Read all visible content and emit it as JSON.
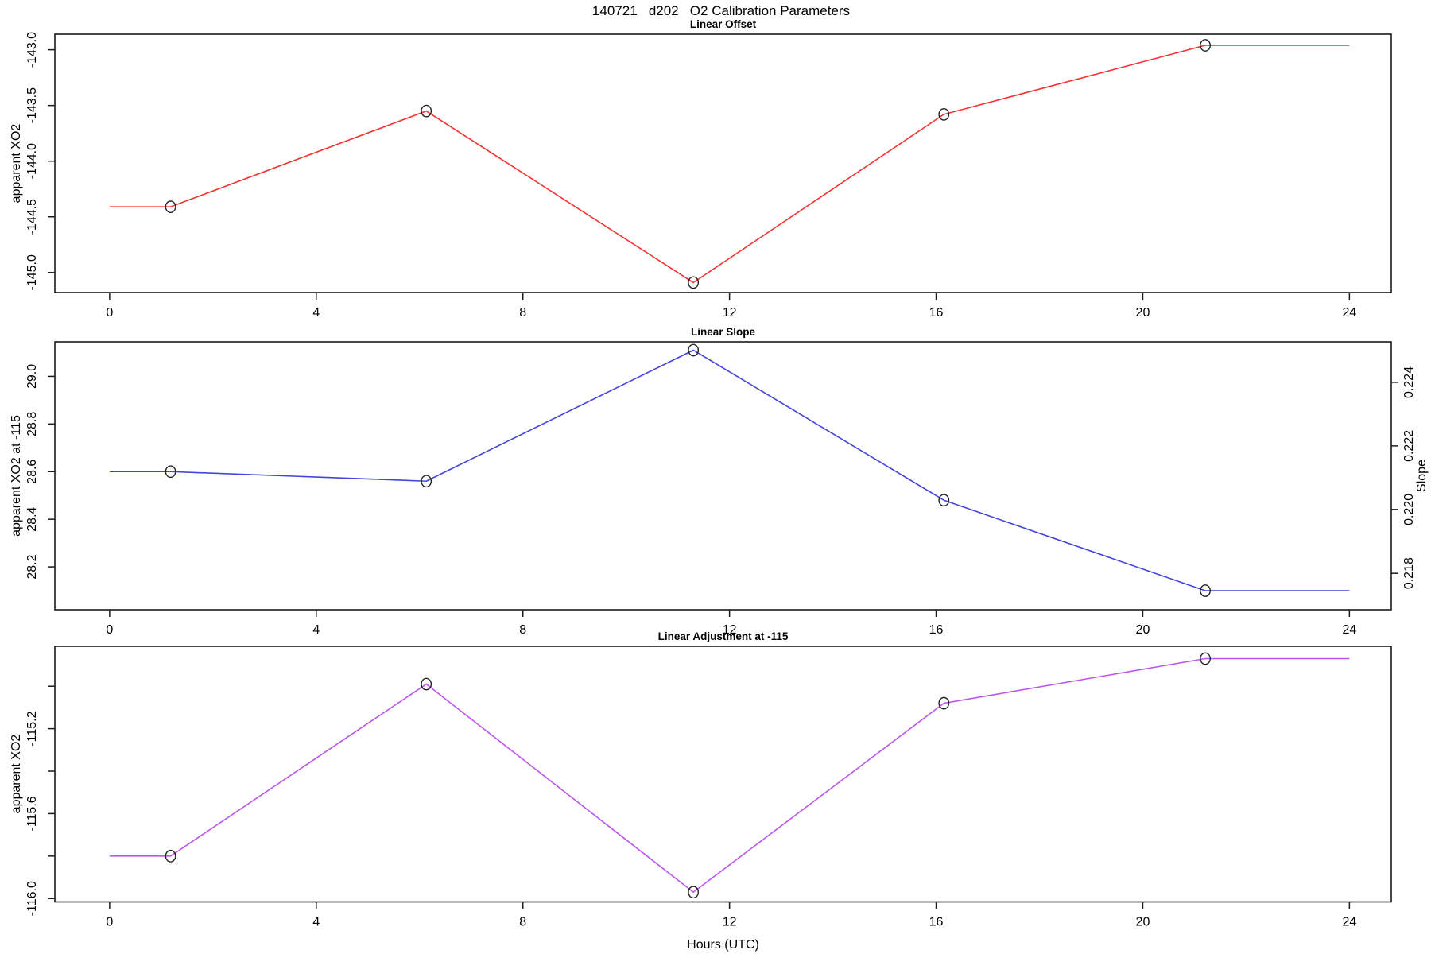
{
  "page_title": "140721   d202   O2 Calibration Parameters",
  "xlabel": "Hours (UTC)",
  "colors": {
    "offset_line": "#f53232",
    "slope_line": "#4343dd",
    "adjustment_line": "#bb55ee",
    "marker_stroke": "#222222",
    "axis": "#1a1a1a"
  },
  "chart_data": [
    {
      "type": "line",
      "title": "Linear Offset",
      "ylabel": "apparent XO2",
      "x": [
        1.18,
        6.13,
        11.3,
        16.15,
        21.21
      ],
      "values": [
        -144.41,
        -143.55,
        -145.09,
        -143.58,
        -142.96
      ],
      "extend_left_x": 0,
      "extend_right_x": 24,
      "xlim": [
        -1.06,
        24.81
      ],
      "ylim": [
        -145.18,
        -142.86
      ],
      "xticks": [
        {
          "v": 0,
          "label": "0"
        },
        {
          "v": 4,
          "label": "4"
        },
        {
          "v": 8,
          "label": "8"
        },
        {
          "v": 12,
          "label": "12"
        },
        {
          "v": 16,
          "label": "16"
        },
        {
          "v": 20,
          "label": "20"
        },
        {
          "v": 24,
          "label": "24"
        }
      ],
      "yticks": [
        {
          "v": -143.0,
          "label": "-143.0"
        },
        {
          "v": -143.5,
          "label": "-143.5"
        },
        {
          "v": -144.0,
          "label": "-144.0"
        },
        {
          "v": -144.5,
          "label": "-144.5"
        },
        {
          "v": -145.0,
          "label": "-145.0"
        }
      ],
      "color_key": "offset_line"
    },
    {
      "type": "line",
      "title": "Linear Slope",
      "ylabel": "apparent XO2 at -115",
      "x": [
        1.18,
        6.13,
        11.3,
        16.15,
        21.21
      ],
      "values": [
        28.6,
        28.56,
        29.11,
        28.48,
        28.1
      ],
      "extend_left_x": 0,
      "extend_right_x": 24,
      "xlim": [
        -1.06,
        24.81
      ],
      "ylim": [
        28.02,
        29.145
      ],
      "xticks": [
        {
          "v": 0,
          "label": "0"
        },
        {
          "v": 4,
          "label": "4"
        },
        {
          "v": 8,
          "label": "8"
        },
        {
          "v": 12,
          "label": "12"
        },
        {
          "v": 16,
          "label": "16"
        },
        {
          "v": 20,
          "label": "20"
        },
        {
          "v": 24,
          "label": "24"
        }
      ],
      "yticks": [
        {
          "v": 29.0,
          "label": "29.0"
        },
        {
          "v": 28.8,
          "label": "28.8"
        },
        {
          "v": 28.6,
          "label": "28.6"
        },
        {
          "v": 28.4,
          "label": "28.4"
        },
        {
          "v": 28.2,
          "label": "28.2"
        }
      ],
      "right_axis": {
        "label": "Slope",
        "ticks": [
          {
            "v": 0.224,
            "at": 28.975,
            "label": "0.224"
          },
          {
            "v": 0.222,
            "at": 28.708,
            "label": "0.222"
          },
          {
            "v": 0.22,
            "at": 28.441,
            "label": "0.220"
          },
          {
            "v": 0.218,
            "at": 28.173,
            "label": "0.218"
          }
        ]
      },
      "color_key": "slope_line"
    },
    {
      "type": "line",
      "title": "Linear Adjustment at -115",
      "ylabel": "apparent XO2",
      "x": [
        1.18,
        6.13,
        11.3,
        16.15,
        21.21
      ],
      "values": [
        -115.8,
        -114.99,
        -115.97,
        -115.08,
        -114.87
      ],
      "extend_left_x": 0,
      "extend_right_x": 24,
      "xlim": [
        -1.06,
        24.81
      ],
      "ylim": [
        -116.016,
        -114.812
      ],
      "xticks": [
        {
          "v": 0,
          "label": "0"
        },
        {
          "v": 4,
          "label": "4"
        },
        {
          "v": 8,
          "label": "8"
        },
        {
          "v": 12,
          "label": "12"
        },
        {
          "v": 16,
          "label": "16"
        },
        {
          "v": 20,
          "label": "20"
        },
        {
          "v": 24,
          "label": "24"
        }
      ],
      "yticks": [
        {
          "v": -115.0,
          "label": ""
        },
        {
          "v": -115.2,
          "label": "-115.2"
        },
        {
          "v": -115.4,
          "label": ""
        },
        {
          "v": -115.6,
          "label": "-115.6"
        },
        {
          "v": -115.8,
          "label": ""
        },
        {
          "v": -116.0,
          "label": "-116.0"
        }
      ],
      "color_key": "adjustment_line"
    }
  ]
}
